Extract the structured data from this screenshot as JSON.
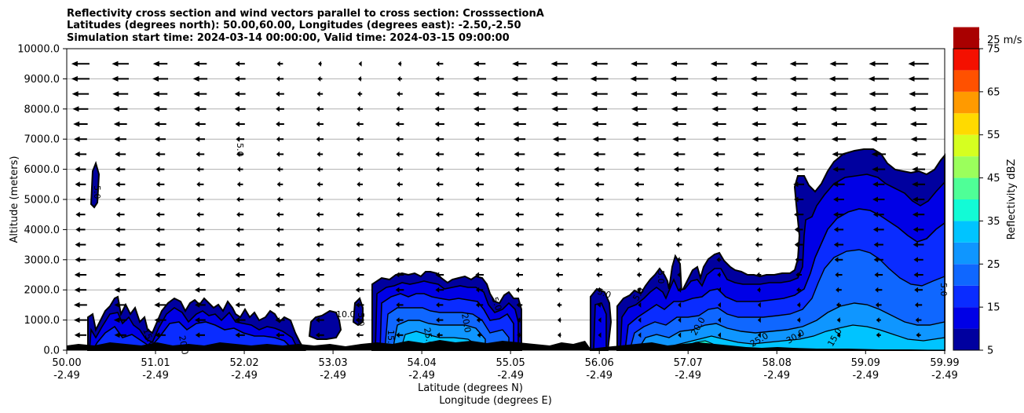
{
  "chart_data": {
    "type": "heatmap",
    "title_lines": [
      "Reflectivity cross section and wind vectors parallel to cross section: CrosssectionA",
      "Latitudes (degrees north): 50.00,60.00, Longitudes (degrees east): -2.50,-2.50",
      "Simulation start time: 2024-03-14 00:00:00, Valid time: 2024-03-15 09:00:00"
    ],
    "ylabel": "Altitude (meters)",
    "xlabel_lat": "Latitude (degrees N)",
    "xlabel_lon": "Longitude (degrees E)",
    "x_range": [
      50.0,
      59.99
    ],
    "y_range": [
      0,
      10000
    ],
    "y_ticks": [
      "0.0",
      "1000.0",
      "2000.0",
      "3000.0",
      "4000.0",
      "5000.0",
      "6000.0",
      "7000.0",
      "8000.0",
      "9000.0",
      "10000.0"
    ],
    "y_tick_values": [
      0,
      1000,
      2000,
      3000,
      4000,
      5000,
      6000,
      7000,
      8000,
      9000,
      10000
    ],
    "x_ticks_lat": [
      "50.00",
      "51.01",
      "52.02",
      "53.03",
      "54.04",
      "55.05",
      "56.06",
      "57.07",
      "58.08",
      "59.09",
      "59.99"
    ],
    "x_ticks_lon": [
      "-2.49",
      "-2.49",
      "-2.49",
      "-2.49",
      "-2.49",
      "-2.49",
      "-2.49",
      "-2.49",
      "-2.49",
      "-2.49",
      "-2.49"
    ],
    "x_tick_values": [
      50.0,
      51.01,
      52.02,
      53.03,
      54.04,
      55.05,
      56.06,
      57.07,
      58.08,
      59.09,
      59.99
    ],
    "grid": "horizontal",
    "colorbar": {
      "label": "Reflectivity dBZ",
      "tick_labels": [
        "5",
        "15",
        "25",
        "35",
        "45",
        "55",
        "65",
        "75"
      ],
      "tick_values": [
        5,
        15,
        25,
        35,
        45,
        55,
        65,
        75
      ],
      "levels": [
        5,
        10,
        15,
        20,
        25,
        30,
        35,
        40,
        45,
        50,
        55,
        60,
        65,
        70,
        75
      ],
      "colors": [
        "#00009f",
        "#0000e6",
        "#0a2cff",
        "#0f67ff",
        "#0f96ff",
        "#00c4ff",
        "#12fbd6",
        "#4fff97",
        "#9bff5c",
        "#d6ff20",
        "#ffda00",
        "#ff9a00",
        "#ff5100",
        "#f41000",
        "#a90000"
      ]
    },
    "quiver_key": {
      "label": "25 m/s",
      "speed": 25
    },
    "contour_labels": [
      "5.0",
      "10.0",
      "15.0",
      "20.0",
      "25.0",
      "30.0"
    ],
    "wind_rows": [
      {
        "alt": 9500,
        "speeds": [
          -15,
          -14,
          -12,
          -11,
          -8,
          -5,
          -3,
          -2,
          -3,
          -6,
          -10,
          -12,
          -14,
          -14,
          -14,
          -14,
          -14,
          -14,
          -15,
          -15,
          -16,
          -17
        ]
      },
      {
        "alt": 9000,
        "speeds": [
          -15,
          -14,
          -13,
          -12,
          -9,
          -6,
          -4,
          -3,
          -4,
          -7,
          -11,
          -13,
          -14,
          -15,
          -15,
          -15,
          -14,
          -14,
          -15,
          -16,
          -17,
          -17
        ]
      },
      {
        "alt": 8500,
        "speeds": [
          -14,
          -13,
          -12,
          -11,
          -9,
          -7,
          -5,
          -4,
          -5,
          -8,
          -11,
          -13,
          -14,
          -14,
          -14,
          -14,
          -13,
          -13,
          -14,
          -15,
          -16,
          -16
        ]
      },
      {
        "alt": 8000,
        "speeds": [
          -13,
          -12,
          -11,
          -10,
          -9,
          -7,
          -6,
          -5,
          -6,
          -8,
          -10,
          -12,
          -13,
          -13,
          -13,
          -13,
          -12,
          -12,
          -13,
          -14,
          -15,
          -15
        ]
      },
      {
        "alt": 7500,
        "speeds": [
          -12,
          -11,
          -10,
          -9,
          -8,
          -7,
          -6,
          -6,
          -7,
          -8,
          -9,
          -11,
          -12,
          -12,
          -12,
          -12,
          -12,
          -12,
          -12,
          -13,
          -14,
          -14
        ]
      },
      {
        "alt": 7000,
        "speeds": [
          -11,
          -10,
          -9,
          -8,
          -7,
          -6,
          -6,
          -6,
          -6,
          -7,
          -8,
          -10,
          -11,
          -11,
          -11,
          -11,
          -11,
          -11,
          -11,
          -12,
          -13,
          -13
        ]
      },
      {
        "alt": 6500,
        "speeds": [
          -10,
          -9,
          -8,
          -7,
          -6,
          -6,
          -5,
          -5,
          -6,
          -7,
          -8,
          -9,
          -10,
          -10,
          -10,
          -10,
          -10,
          -10,
          -10,
          -11,
          -12,
          -12
        ]
      },
      {
        "alt": 6000,
        "speeds": [
          -9,
          -8,
          -7,
          -6,
          -5,
          -5,
          -5,
          -5,
          -5,
          -6,
          -7,
          -8,
          -9,
          -9,
          -9,
          -9,
          -9,
          -9,
          -10,
          -10,
          -11,
          -11
        ]
      },
      {
        "alt": 5500,
        "speeds": [
          -9,
          -8,
          -7,
          -6,
          -5,
          -5,
          -5,
          -5,
          -5,
          -6,
          -7,
          -8,
          -8,
          -8,
          -8,
          -8,
          -8,
          -8,
          -9,
          -10,
          -10,
          -11
        ]
      },
      {
        "alt": 5000,
        "speeds": [
          -8,
          -8,
          -7,
          -6,
          -6,
          -5,
          -5,
          -5,
          -5,
          -6,
          -7,
          -7,
          -7,
          -7,
          -7,
          -7,
          -7,
          -8,
          -8,
          -9,
          -10,
          -10
        ]
      },
      {
        "alt": 4500,
        "speeds": [
          -8,
          -7,
          -7,
          -6,
          -6,
          -6,
          -6,
          -6,
          -6,
          -6,
          -7,
          -7,
          -7,
          -7,
          -6,
          -6,
          -6,
          -7,
          -8,
          -9,
          -9,
          -10
        ]
      },
      {
        "alt": 4000,
        "speeds": [
          -8,
          -8,
          -7,
          -7,
          -6,
          -6,
          -6,
          -6,
          -6,
          -7,
          -7,
          -7,
          -7,
          -6,
          -6,
          -5,
          -5,
          -6,
          -7,
          -8,
          -9,
          -9
        ]
      },
      {
        "alt": 3500,
        "speeds": [
          -9,
          -8,
          -8,
          -7,
          -7,
          -6,
          -6,
          -6,
          -7,
          -7,
          -7,
          -7,
          -7,
          -6,
          -5,
          -5,
          -5,
          -6,
          -7,
          -8,
          -8,
          -9
        ]
      },
      {
        "alt": 3000,
        "speeds": [
          -9,
          -9,
          -8,
          -8,
          -7,
          -7,
          -7,
          -7,
          -7,
          -7,
          -7,
          -7,
          -6,
          -6,
          -5,
          -4,
          -4,
          -5,
          -6,
          -7,
          -8,
          -8
        ]
      },
      {
        "alt": 2500,
        "speeds": [
          -10,
          -9,
          -9,
          -8,
          -8,
          -7,
          -7,
          -7,
          -7,
          -7,
          -7,
          -6,
          -6,
          -5,
          -4,
          -3,
          -3,
          -4,
          -5,
          -6,
          -7,
          -8
        ]
      },
      {
        "alt": 2000,
        "speeds": [
          -10,
          -10,
          -9,
          -9,
          -8,
          -8,
          -7,
          -7,
          -7,
          -7,
          -6,
          -6,
          -5,
          -4,
          -3,
          -2,
          -2,
          -3,
          -4,
          -5,
          -6,
          -7
        ]
      },
      {
        "alt": 1500,
        "speeds": [
          -11,
          -10,
          -10,
          -9,
          -8,
          -8,
          -7,
          -7,
          -6,
          -6,
          -6,
          -5,
          -4,
          -3,
          -2,
          -2,
          -2,
          -2,
          -3,
          -4,
          -5,
          -6
        ]
      },
      {
        "alt": 1000,
        "speeds": [
          -11,
          -11,
          -10,
          -9,
          -9,
          -8,
          -7,
          -7,
          -6,
          -6,
          -5,
          -4,
          -3,
          -2,
          -2,
          -2,
          -2,
          -2,
          -3,
          -3,
          -4,
          -5
        ]
      },
      {
        "alt": 500,
        "speeds": [
          -10,
          -10,
          -9,
          -8,
          -8,
          -7,
          -7,
          -6,
          -6,
          -5,
          -4,
          -4,
          -3,
          -2,
          -2,
          -2,
          -2,
          -2,
          -2,
          -3,
          -4,
          -4
        ]
      }
    ]
  }
}
